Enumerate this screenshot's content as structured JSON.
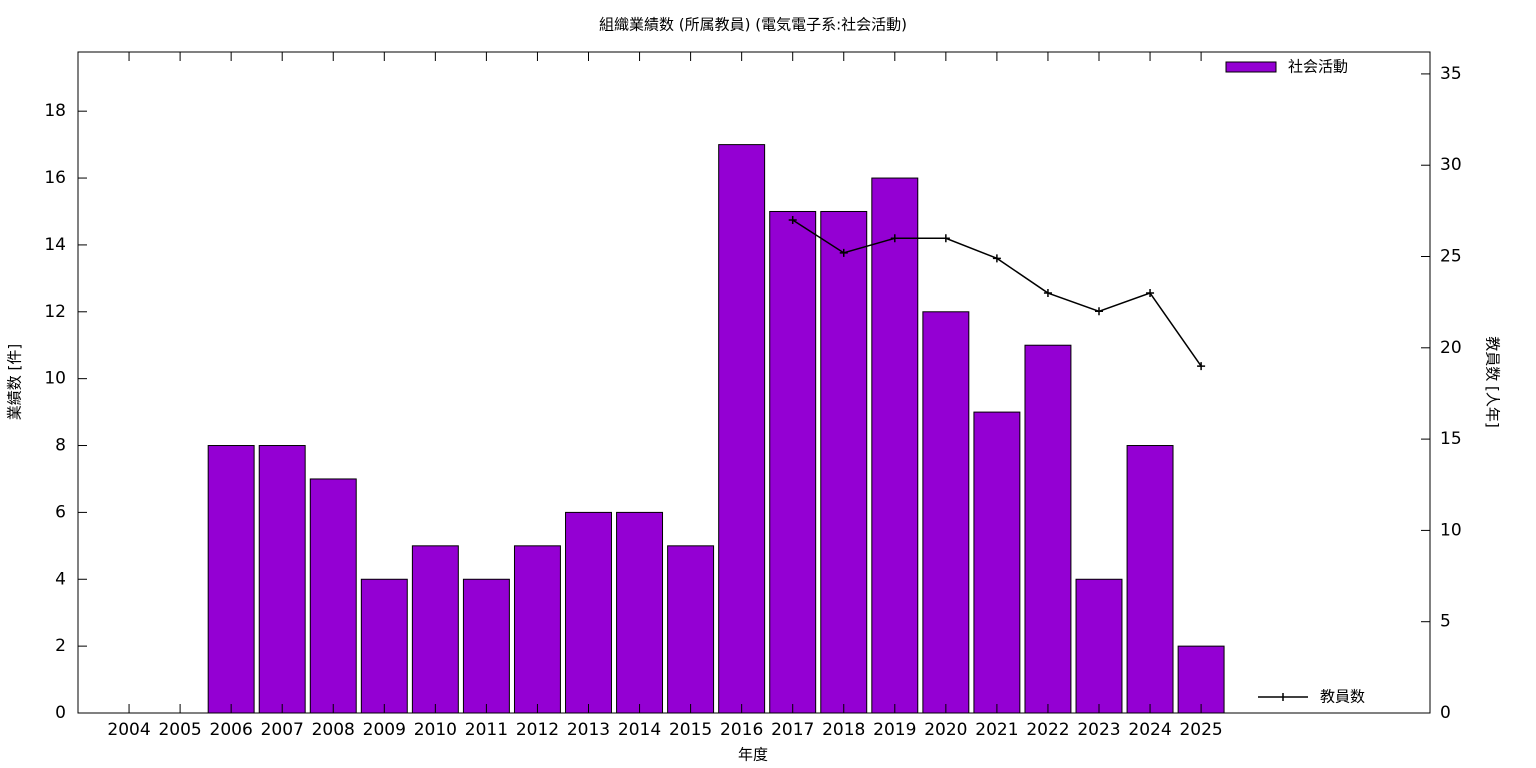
{
  "chart_data": {
    "type": "bar",
    "title": "組織業績数 (所属教員) (電気電子系:社会活動)",
    "x_label": "年度",
    "y_label": "業績数 [件]",
    "y2_label": "教員数 [人年]",
    "categories": [
      "2004",
      "2005",
      "2006",
      "2007",
      "2008",
      "2009",
      "2010",
      "2011",
      "2012",
      "2013",
      "2014",
      "2015",
      "2016",
      "2017",
      "2018",
      "2019",
      "2020",
      "2021",
      "2022",
      "2023",
      "2024",
      "2025"
    ],
    "series": [
      {
        "name": "社会活動",
        "type": "bar",
        "color": "#9400d3",
        "values": [
          0,
          0,
          8,
          8,
          7,
          4,
          5,
          4,
          5,
          6,
          6,
          5,
          17,
          15,
          15,
          16,
          12,
          9,
          11,
          4,
          8,
          2
        ]
      },
      {
        "name": "教員数",
        "type": "line",
        "color": "#000000",
        "axis": "y2",
        "values": [
          null,
          null,
          null,
          null,
          null,
          null,
          null,
          null,
          null,
          null,
          null,
          null,
          null,
          27.0,
          25.2,
          26.0,
          26.0,
          24.9,
          23.0,
          22.0,
          23.0,
          19.0
        ]
      }
    ],
    "ylim": [
      0,
      19.77
    ],
    "yticks": [
      0,
      2,
      4,
      6,
      8,
      10,
      12,
      14,
      16,
      18
    ],
    "y2lim": [
      0,
      36.2
    ],
    "y2ticks": [
      0,
      5,
      10,
      15,
      20,
      25,
      30,
      35
    ]
  }
}
